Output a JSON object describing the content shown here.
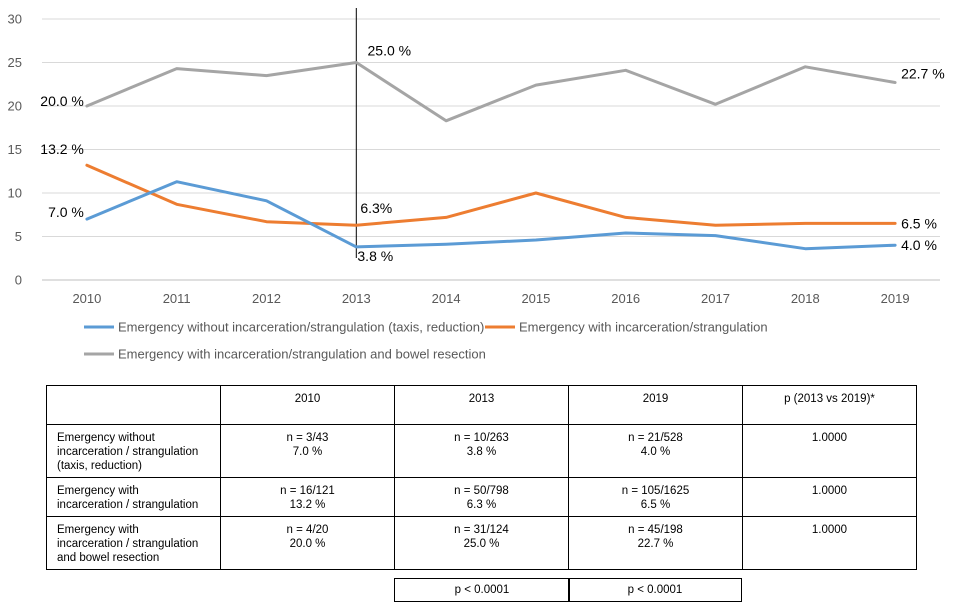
{
  "chart_data": {
    "type": "line",
    "title": "",
    "xlabel": "",
    "ylabel": "",
    "ylim": [
      0,
      30
    ],
    "yticks": [
      0,
      5,
      10,
      15,
      20,
      25,
      30
    ],
    "categories": [
      "2010",
      "2011",
      "2012",
      "2013",
      "2014",
      "2015",
      "2016",
      "2017",
      "2018",
      "2019"
    ],
    "reference_line_at": "2013",
    "series": [
      {
        "name": "Emergency without incarceration/strangulation (taxis, reduction)",
        "color": "#5b9bd5",
        "values": [
          7.0,
          11.3,
          9.1,
          3.8,
          4.1,
          4.6,
          5.4,
          5.1,
          3.6,
          4.0
        ],
        "labels": [
          {
            "index": 0,
            "text": "7.0 %"
          },
          {
            "index": 3,
            "text": "3.8 %"
          },
          {
            "index": 9,
            "text": "4.0 %"
          }
        ]
      },
      {
        "name": "Emergency with incarceration/strangulation",
        "color": "#ed7d31",
        "values": [
          13.2,
          8.7,
          6.7,
          6.3,
          7.2,
          10.0,
          7.2,
          6.3,
          6.5,
          6.5
        ],
        "labels": [
          {
            "index": 0,
            "text": "13.2 %"
          },
          {
            "index": 3,
            "text": "6.3%"
          },
          {
            "index": 9,
            "text": "6.5 %"
          }
        ]
      },
      {
        "name": "Emergency with incarceration/strangulation and bowel resection",
        "color": "#a5a5a5",
        "values": [
          20.0,
          24.3,
          23.5,
          25.0,
          18.3,
          22.4,
          24.1,
          20.2,
          24.5,
          22.7
        ],
        "labels": [
          {
            "index": 0,
            "text": "20.0 %"
          },
          {
            "index": 3,
            "text": "25.0 %"
          },
          {
            "index": 9,
            "text": "22.7 %"
          }
        ]
      }
    ]
  },
  "table": {
    "headers": [
      "",
      "2010",
      "2013",
      "2019",
      "p (2013 vs 2019)*"
    ],
    "rows": [
      {
        "label": "Emergency without incarceration / strangulation (taxis, reduction)",
        "label_lines": [
          "Emergency without",
          "incarceration / strangulation",
          "(taxis, reduction)"
        ],
        "cells": [
          {
            "n": "n = 3/43",
            "pct": "7.0 %"
          },
          {
            "n": "n = 10/263",
            "pct": "3.8 %"
          },
          {
            "n": "n = 21/528",
            "pct": "4.0 %"
          }
        ],
        "p": "1.0000"
      },
      {
        "label": "Emergency with incarceration / strangulation",
        "label_lines": [
          "Emergency with",
          "incarceration / strangulation"
        ],
        "cells": [
          {
            "n": "n = 16/121",
            "pct": "13.2 %"
          },
          {
            "n": "n = 50/798",
            "pct": "6.3 %"
          },
          {
            "n": "n = 105/1625",
            "pct": "6.5 %"
          }
        ],
        "p": "1.0000"
      },
      {
        "label": "Emergency with incarceration / strangulation and bowel resection",
        "label_lines": [
          "Emergency with",
          "incarceration / strangulation",
          "and bowel resection"
        ],
        "cells": [
          {
            "n": "n = 4/20",
            "pct": "20.0 %"
          },
          {
            "n": "n = 31/124",
            "pct": "25.0 %"
          },
          {
            "n": "n = 45/198",
            "pct": "22.7 %"
          }
        ],
        "p": "1.0000"
      }
    ],
    "footer_p": [
      "p < 0.0001",
      "p < 0.0001"
    ]
  }
}
